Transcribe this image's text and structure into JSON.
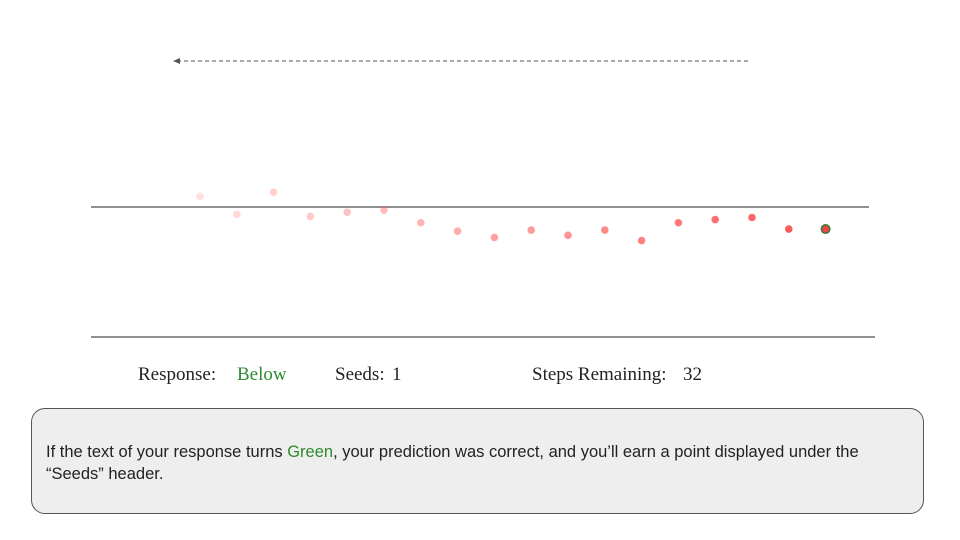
{
  "arrow": {
    "direction": "left"
  },
  "colors": {
    "dot": "#ff4d4d",
    "last_dot_fill": "#ee4444",
    "last_dot_stroke": "#3a7d3a",
    "correct_text": "#2e8b2e",
    "line": "#222222"
  },
  "chart_data": {
    "type": "scatter",
    "title": "",
    "xlabel": "",
    "ylabel": "",
    "grid": false,
    "reference_line_y": 0,
    "x": [
      1,
      2,
      3,
      4,
      5,
      6,
      7,
      8,
      9,
      10,
      11,
      12,
      13,
      14,
      15,
      16,
      17,
      18
    ],
    "y": [
      1.0,
      -0.7,
      1.4,
      -0.9,
      -0.5,
      -0.3,
      -1.5,
      -2.3,
      -2.9,
      -2.2,
      -2.7,
      -2.2,
      -3.2,
      -1.5,
      -1.2,
      -1.0,
      -2.1,
      -2.1
    ],
    "opacity": [
      0.18,
      0.22,
      0.26,
      0.3,
      0.34,
      0.38,
      0.42,
      0.47,
      0.52,
      0.56,
      0.6,
      0.65,
      0.7,
      0.75,
      0.8,
      0.86,
      0.92,
      1.0
    ],
    "highlight_last": true
  },
  "status": {
    "response_label": "Response:",
    "response_value": "Below",
    "seeds_label": "Seeds:",
    "seeds_value": "1",
    "steps_label": "Steps Remaining:",
    "steps_value": "32"
  },
  "info": {
    "text_before": "If the text of your response turns ",
    "text_green": "Green",
    "text_after": ", your prediction was correct, and you’ll earn a point displayed under the “Seeds” header."
  }
}
